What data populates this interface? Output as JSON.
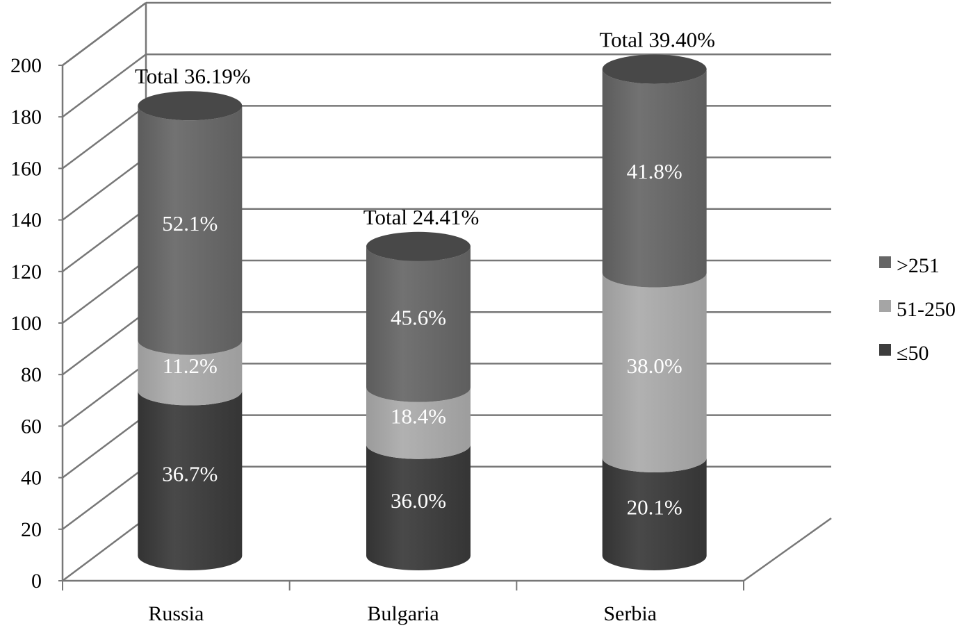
{
  "chart_data": {
    "type": "bar",
    "stacked": true,
    "three_d": true,
    "categories": [
      "Russia",
      "Bulgaria",
      "Serbia"
    ],
    "ylim": [
      0,
      200
    ],
    "yticks": [
      "0",
      "20",
      "40",
      "60",
      "80",
      "100",
      "120",
      "140",
      "160",
      "180",
      "200"
    ],
    "grid": true,
    "legend_position": "right",
    "series": [
      {
        "name": "≤50",
        "color": "#3d3d3d",
        "values": [
          64,
          43.2,
          38
        ],
        "labels": [
          "36.7%",
          "36.0%",
          "20.1%"
        ]
      },
      {
        "name": "51-250",
        "color": "#a5a5a5",
        "values": [
          19.6,
          22.1,
          71.8
        ],
        "labels": [
          "11.2%",
          "18.4%",
          "38.0%"
        ]
      },
      {
        "name": ">251",
        "color": "#666666",
        "values": [
          91,
          54.7,
          79
        ],
        "labels": [
          "52.1%",
          "45.6%",
          "41.8%"
        ]
      }
    ],
    "totals": [
      "Total 36.19%",
      "Total 24.41%",
      "Total 39.40%"
    ]
  }
}
